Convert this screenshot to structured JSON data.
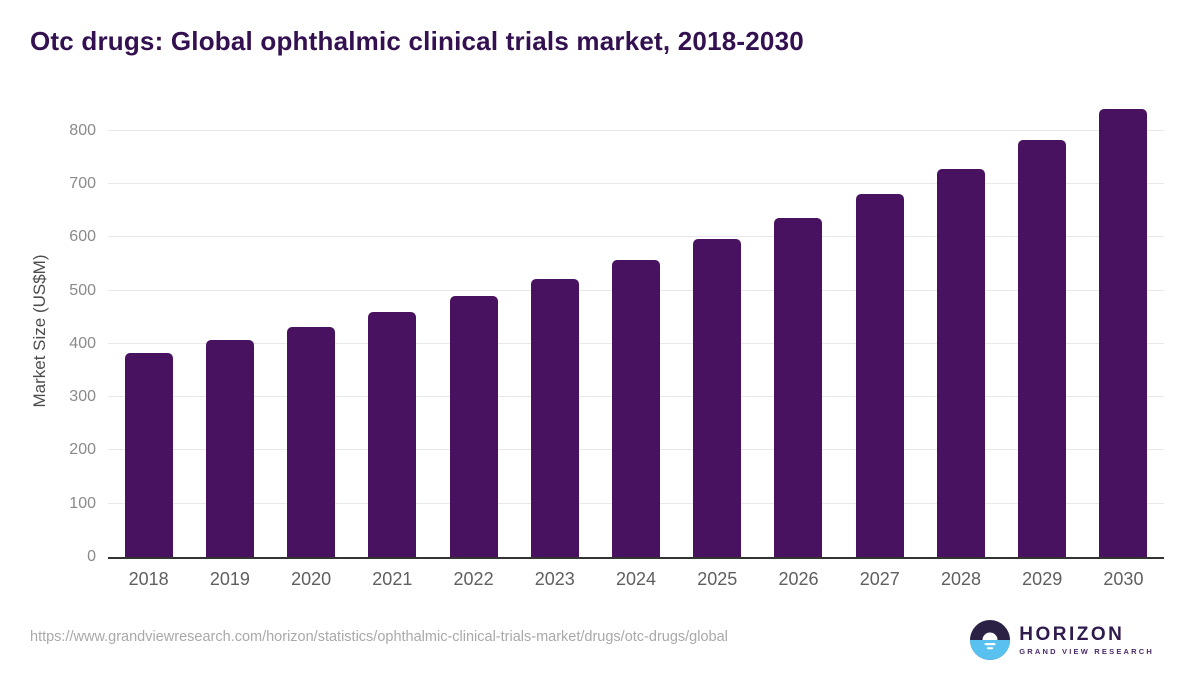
{
  "title": "Otc drugs: Global ophthalmic clinical trials market, 2018-2030",
  "chart_data": {
    "type": "bar",
    "title": "Otc drugs: Global ophthalmic clinical trials market, 2018-2030",
    "categories": [
      "2018",
      "2019",
      "2020",
      "2021",
      "2022",
      "2023",
      "2024",
      "2025",
      "2026",
      "2027",
      "2028",
      "2029",
      "2030"
    ],
    "values": [
      383,
      407,
      432,
      460,
      490,
      522,
      558,
      596,
      637,
      681,
      729,
      782,
      840
    ],
    "xlabel": "",
    "ylabel": "Market Size (US$M)",
    "ylim": [
      0,
      852
    ],
    "yticks": [
      0,
      100,
      200,
      300,
      400,
      500,
      600,
      700,
      800
    ],
    "grid": true,
    "legend": "none",
    "bar_color": "#481260"
  },
  "colors": {
    "title": "#331050",
    "bar": "#481260",
    "gridline": "#e8e8e8",
    "axis_line": "#333333",
    "y_tick": "#8a8a8a",
    "x_tick": "#5f5f5f",
    "url_text": "#a9a9a9",
    "logo_dark": "#2b2144",
    "logo_blue": "#58c1ef",
    "logo_text": "#2f1b4d"
  },
  "footer": {
    "source_url": "https://www.grandviewresearch.com/horizon/statistics/ophthalmic-clinical-trials-market/drugs/otc-drugs/global",
    "logo_name": "HORIZON",
    "logo_subtitle": "GRAND VIEW RESEARCH"
  }
}
